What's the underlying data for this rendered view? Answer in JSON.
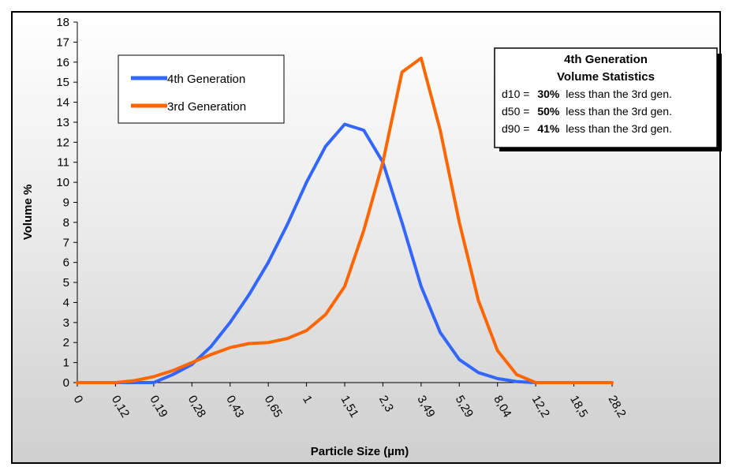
{
  "chart_data": {
    "type": "line",
    "xlabel": "Particle Size (µm)",
    "ylabel": "Volume %",
    "ylim": [
      0,
      18
    ],
    "yticks": [
      0,
      1,
      2,
      3,
      4,
      5,
      6,
      7,
      8,
      9,
      10,
      11,
      12,
      13,
      14,
      15,
      16,
      17,
      18
    ],
    "x_tick_labels": [
      "0",
      "0,12",
      "0,19",
      "0,28",
      "0,43",
      "0,65",
      "1",
      "1,51",
      "2,3",
      "3,49",
      "5,29",
      "8,04",
      "12,2",
      "18,5",
      "28,2"
    ],
    "grid": false,
    "legend_position": "top-left",
    "series": [
      {
        "name": "4th Generation",
        "color": "#3366ff",
        "points": [
          [
            0,
            0
          ],
          [
            1,
            0
          ],
          [
            1.7,
            0
          ],
          [
            2,
            0
          ],
          [
            2.5,
            0.4
          ],
          [
            3,
            0.9
          ],
          [
            3.5,
            1.8
          ],
          [
            4,
            3.0
          ],
          [
            4.5,
            4.4
          ],
          [
            5,
            6.0
          ],
          [
            5.5,
            7.9
          ],
          [
            6,
            10.0
          ],
          [
            6.5,
            11.8
          ],
          [
            7,
            12.9
          ],
          [
            7.5,
            12.6
          ],
          [
            8,
            11.0
          ],
          [
            8.5,
            8.0
          ],
          [
            9,
            4.8
          ],
          [
            9.5,
            2.5
          ],
          [
            10,
            1.15
          ],
          [
            10.5,
            0.5
          ],
          [
            11,
            0.2
          ],
          [
            11.5,
            0.05
          ],
          [
            12,
            0
          ]
        ]
      },
      {
        "name": "3rd Generation",
        "color": "#ff6600",
        "points": [
          [
            0,
            0
          ],
          [
            1,
            0
          ],
          [
            1.5,
            0.1
          ],
          [
            2,
            0.3
          ],
          [
            2.5,
            0.6
          ],
          [
            3,
            1.0
          ],
          [
            3.5,
            1.4
          ],
          [
            4,
            1.75
          ],
          [
            4.5,
            1.95
          ],
          [
            5,
            2.0
          ],
          [
            5.5,
            2.2
          ],
          [
            6,
            2.6
          ],
          [
            6.5,
            3.4
          ],
          [
            7,
            4.8
          ],
          [
            7.5,
            7.6
          ],
          [
            8,
            11.0
          ],
          [
            8.5,
            15.5
          ],
          [
            9,
            16.2
          ],
          [
            9.5,
            12.6
          ],
          [
            10,
            8.0
          ],
          [
            10.5,
            4.1
          ],
          [
            11,
            1.6
          ],
          [
            11.5,
            0.4
          ],
          [
            12,
            0
          ],
          [
            13,
            0
          ],
          [
            14,
            0
          ]
        ]
      }
    ],
    "annotation": {
      "title_lines": [
        "4th Generation",
        "Volume Statistics"
      ],
      "rows": [
        {
          "label": "d10 =",
          "value": "30%",
          "text": "less than the 3rd gen."
        },
        {
          "label": "d50 =",
          "value": "50%",
          "text": "less than the 3rd gen."
        },
        {
          "label": "d90 =",
          "value": "41%",
          "text": "less than the 3rd gen."
        }
      ]
    }
  }
}
